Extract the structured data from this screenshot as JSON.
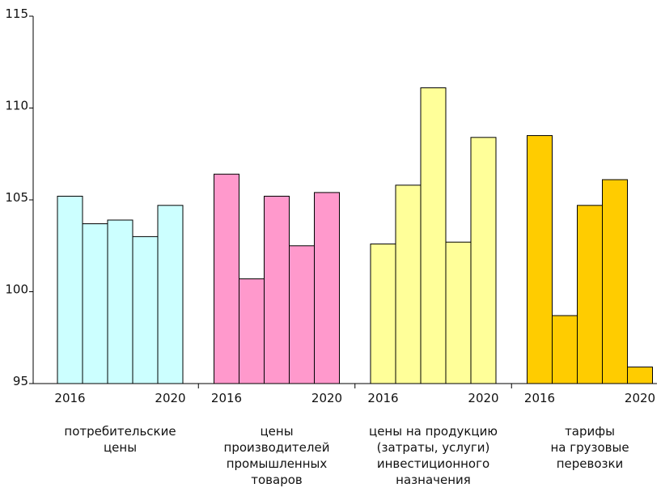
{
  "chart_data": {
    "type": "bar",
    "ylim": [
      95,
      115
    ],
    "yticks": [
      "95",
      "100",
      "105",
      "110",
      "115"
    ],
    "grid": false,
    "groups": [
      {
        "label_lines": [
          "потребительские",
          "цены"
        ],
        "year_start": "2016",
        "year_end": "2020",
        "color": "#CCFFFF",
        "x": [
          "2016",
          "2017",
          "2018",
          "2019",
          "2020"
        ],
        "values": [
          105.2,
          103.7,
          103.9,
          103.0,
          104.7
        ]
      },
      {
        "label_lines": [
          "цены",
          "производителей",
          "промышленных",
          "товаров"
        ],
        "year_start": "2016",
        "year_end": "2020",
        "color": "#FF99CC",
        "x": [
          "2016",
          "2017",
          "2018",
          "2019",
          "2020"
        ],
        "values": [
          106.4,
          100.7,
          105.2,
          102.5,
          105.4
        ]
      },
      {
        "label_lines": [
          "цены на продукцию",
          "(затраты, услуги)",
          "инвестиционного",
          "назначения"
        ],
        "year_start": "2016",
        "year_end": "2020",
        "color": "#FFFF99",
        "x": [
          "2016",
          "2017",
          "2018",
          "2019",
          "2020"
        ],
        "values": [
          102.6,
          105.8,
          111.1,
          102.7,
          108.4
        ]
      },
      {
        "label_lines": [
          "тарифы",
          "на грузовые",
          "перевозки"
        ],
        "year_start": "2016",
        "year_end": "2020",
        "color": "#FFCC00",
        "x": [
          "2016",
          "2017",
          "2018",
          "2019",
          "2020"
        ],
        "values": [
          108.5,
          98.7,
          104.7,
          106.1,
          95.9
        ]
      }
    ]
  }
}
